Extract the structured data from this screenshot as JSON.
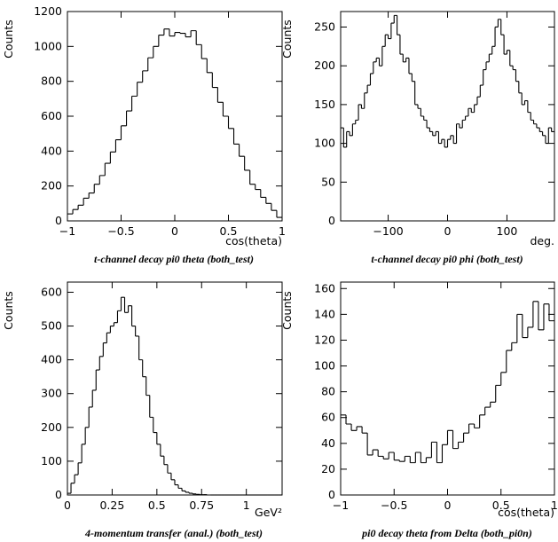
{
  "chart_data": [
    {
      "type": "histogram",
      "caption": "t-channel decay pi0 theta (both_test)",
      "ylabel": "Counts",
      "xlabel": "cos(theta)",
      "xlim": [
        -1,
        1
      ],
      "ylim": [
        0,
        1200
      ],
      "xticks": [
        -1,
        -0.5,
        0,
        0.5,
        1
      ],
      "xtick_labels": [
        "−1",
        "−0.5",
        "0",
        "0.5",
        "1"
      ],
      "yticks": [
        0,
        200,
        400,
        600,
        800,
        1000,
        1200
      ],
      "ytick_labels": [
        "0",
        "200",
        "400",
        "600",
        "800",
        "1000",
        "1200"
      ],
      "bin_edges": [
        -1,
        -0.95,
        -0.9,
        -0.85,
        -0.8,
        -0.75,
        -0.7,
        -0.65,
        -0.6,
        -0.55,
        -0.5,
        -0.45,
        -0.4,
        -0.35,
        -0.3,
        -0.25,
        -0.2,
        -0.15,
        -0.1,
        -0.05,
        0,
        0.05,
        0.1,
        0.15,
        0.2,
        0.25,
        0.3,
        0.35,
        0.4,
        0.45,
        0.5,
        0.55,
        0.6,
        0.65,
        0.7,
        0.75,
        0.8,
        0.85,
        0.9,
        0.95,
        1
      ],
      "values": [
        40,
        65,
        90,
        130,
        160,
        210,
        260,
        330,
        395,
        465,
        545,
        630,
        715,
        795,
        860,
        935,
        1000,
        1065,
        1100,
        1060,
        1080,
        1075,
        1055,
        1090,
        1010,
        930,
        850,
        765,
        680,
        600,
        530,
        440,
        370,
        290,
        210,
        180,
        135,
        100,
        60,
        20
      ]
    },
    {
      "type": "histogram",
      "caption": "t-channel decay pi0 phi (both_test)",
      "ylabel": "Counts",
      "xlabel": "deg.",
      "xlim": [
        -180,
        180
      ],
      "ylim": [
        0,
        270
      ],
      "xticks": [
        -100,
        0,
        100
      ],
      "xtick_labels": [
        "−100",
        "0",
        "100"
      ],
      "yticks": [
        0,
        50,
        100,
        150,
        200,
        250
      ],
      "ytick_labels": [
        "0",
        "50",
        "100",
        "150",
        "200",
        "250"
      ],
      "bin_edges": [
        -180,
        -175,
        -170,
        -165,
        -160,
        -155,
        -150,
        -145,
        -140,
        -135,
        -130,
        -125,
        -120,
        -115,
        -110,
        -105,
        -100,
        -95,
        -90,
        -85,
        -80,
        -75,
        -70,
        -65,
        -60,
        -55,
        -50,
        -45,
        -40,
        -35,
        -30,
        -25,
        -20,
        -15,
        -10,
        -5,
        0,
        5,
        10,
        15,
        20,
        25,
        30,
        35,
        40,
        45,
        50,
        55,
        60,
        65,
        70,
        75,
        80,
        85,
        90,
        95,
        100,
        105,
        110,
        115,
        120,
        125,
        130,
        135,
        140,
        145,
        150,
        155,
        160,
        165,
        170,
        175,
        180
      ],
      "values": [
        120,
        95,
        115,
        110,
        125,
        130,
        150,
        145,
        165,
        175,
        190,
        205,
        210,
        200,
        225,
        240,
        235,
        255,
        265,
        240,
        215,
        205,
        210,
        190,
        180,
        150,
        145,
        135,
        130,
        120,
        115,
        110,
        115,
        100,
        105,
        95,
        105,
        110,
        100,
        125,
        120,
        130,
        135,
        145,
        140,
        150,
        160,
        175,
        195,
        205,
        215,
        225,
        250,
        260,
        240,
        215,
        220,
        200,
        195,
        180,
        165,
        150,
        155,
        140,
        130,
        125,
        120,
        115,
        110,
        100,
        120,
        115
      ]
    },
    {
      "type": "histogram",
      "caption": "4-momentum transfer (anal.) (both_test)",
      "ylabel": "Counts",
      "xlabel": "GeV²",
      "xlim": [
        0,
        1.2
      ],
      "ylim": [
        0,
        630
      ],
      "xticks": [
        0,
        0.25,
        0.5,
        0.75,
        1
      ],
      "xtick_labels": [
        "0",
        "0.25",
        "0.5",
        "0.75",
        "1"
      ],
      "yticks": [
        0,
        100,
        200,
        300,
        400,
        500,
        600
      ],
      "ytick_labels": [
        "0",
        "100",
        "200",
        "300",
        "400",
        "500",
        "600"
      ],
      "bin_edges": [
        0,
        0.02,
        0.04,
        0.06,
        0.08,
        0.1,
        0.12,
        0.14,
        0.16,
        0.18,
        0.2,
        0.22,
        0.24,
        0.26,
        0.28,
        0.3,
        0.32,
        0.34,
        0.36,
        0.38,
        0.4,
        0.42,
        0.44,
        0.46,
        0.48,
        0.5,
        0.52,
        0.54,
        0.56,
        0.58,
        0.6,
        0.62,
        0.64,
        0.66,
        0.68,
        0.7,
        0.72,
        0.74,
        0.76,
        0.78,
        0.8,
        0.82,
        0.84,
        0.86,
        0.88,
        0.9,
        0.92,
        0.94,
        0.96,
        0.98,
        1.0,
        1.02,
        1.04,
        1.06,
        1.08,
        1.1,
        1.12,
        1.14,
        1.16,
        1.18,
        1.2
      ],
      "values": [
        5,
        35,
        60,
        95,
        150,
        200,
        260,
        310,
        370,
        410,
        450,
        480,
        500,
        510,
        545,
        585,
        540,
        560,
        500,
        470,
        400,
        350,
        295,
        230,
        185,
        150,
        115,
        90,
        65,
        45,
        30,
        20,
        12,
        8,
        5,
        3,
        2,
        1,
        1,
        0,
        0,
        0,
        0,
        0,
        0,
        0,
        0,
        0,
        0,
        0,
        0,
        0,
        0,
        0,
        0,
        0,
        0,
        0,
        0,
        0
      ]
    },
    {
      "type": "histogram",
      "caption": "pi0 decay theta from Delta (both_pi0n)",
      "ylabel": "Counts",
      "xlabel": "cos(theta)",
      "xlim": [
        -1,
        1
      ],
      "ylim": [
        0,
        165
      ],
      "xticks": [
        -1,
        -0.5,
        0,
        0.5,
        1
      ],
      "xtick_labels": [
        "−1",
        "−0.5",
        "0",
        "0.5",
        "1"
      ],
      "yticks": [
        0,
        20,
        40,
        60,
        80,
        100,
        120,
        140,
        160
      ],
      "ytick_labels": [
        "0",
        "20",
        "40",
        "60",
        "80",
        "100",
        "120",
        "140",
        "160"
      ],
      "bin_edges": [
        -1,
        -0.95,
        -0.9,
        -0.85,
        -0.8,
        -0.75,
        -0.7,
        -0.65,
        -0.6,
        -0.55,
        -0.5,
        -0.45,
        -0.4,
        -0.35,
        -0.3,
        -0.25,
        -0.2,
        -0.15,
        -0.1,
        -0.05,
        0,
        0.05,
        0.1,
        0.15,
        0.2,
        0.25,
        0.3,
        0.35,
        0.4,
        0.45,
        0.5,
        0.55,
        0.6,
        0.65,
        0.7,
        0.75,
        0.8,
        0.85,
        0.9,
        0.95,
        1
      ],
      "values": [
        62,
        55,
        50,
        53,
        48,
        31,
        35,
        30,
        28,
        33,
        27,
        26,
        30,
        25,
        33,
        25,
        29,
        41,
        25,
        39,
        50,
        36,
        41,
        48,
        55,
        52,
        62,
        68,
        72,
        85,
        95,
        112,
        118,
        140,
        122,
        130,
        150,
        128,
        148,
        135
      ]
    }
  ]
}
